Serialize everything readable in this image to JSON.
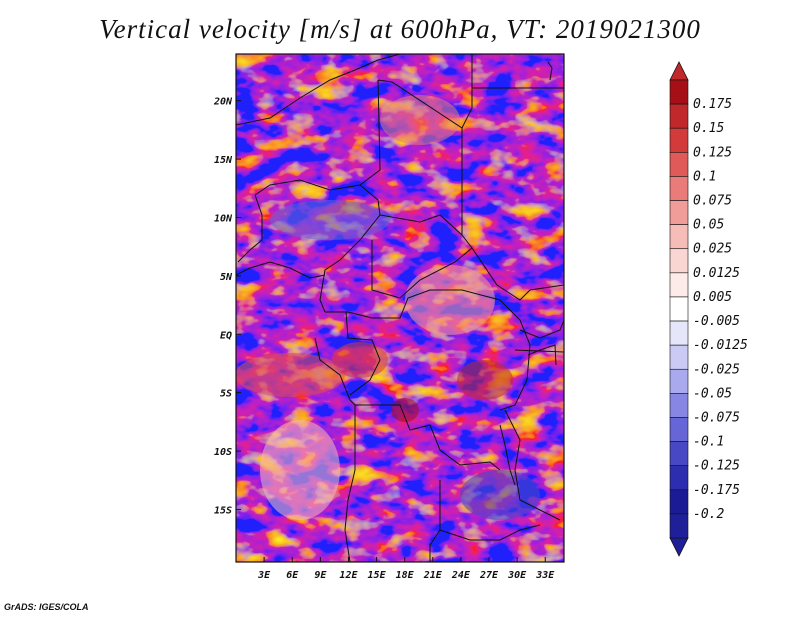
{
  "title": "Vertical velocity [m/s] at 600hPa, VT: 2019021300",
  "credit": "GrADS: IGES/COLA",
  "map": {
    "lon_range": [
      0,
      35
    ],
    "lat_range": [
      -19.5,
      24
    ],
    "lat_ticks": [
      {
        "value": 20,
        "label": "20N"
      },
      {
        "value": 15,
        "label": "15N"
      },
      {
        "value": 10,
        "label": "10N"
      },
      {
        "value": 5,
        "label": "5N"
      },
      {
        "value": 0,
        "label": "EQ"
      },
      {
        "value": -5,
        "label": "5S"
      },
      {
        "value": -10,
        "label": "10S"
      },
      {
        "value": -15,
        "label": "15S"
      }
    ],
    "lon_ticks": [
      {
        "value": 3,
        "label": "3E"
      },
      {
        "value": 6,
        "label": "6E"
      },
      {
        "value": 9,
        "label": "9E"
      },
      {
        "value": 12,
        "label": "12E"
      },
      {
        "value": 15,
        "label": "15E"
      },
      {
        "value": 18,
        "label": "18E"
      },
      {
        "value": 21,
        "label": "21E"
      },
      {
        "value": 24,
        "label": "24E"
      },
      {
        "value": 27,
        "label": "27E"
      },
      {
        "value": 30,
        "label": "30E"
      },
      {
        "value": 33,
        "label": "33E"
      }
    ]
  },
  "colorbar": {
    "levels": [
      {
        "label": "0.175",
        "color": "#a50f15"
      },
      {
        "label": "0.15",
        "color": "#c0282b"
      },
      {
        "label": "0.125",
        "color": "#d33b3b"
      },
      {
        "label": "0.1",
        "color": "#e05a5a"
      },
      {
        "label": "0.075",
        "color": "#e97b78"
      },
      {
        "label": "0.05",
        "color": "#f09c98"
      },
      {
        "label": "0.025",
        "color": "#f6bcb8"
      },
      {
        "label": "0.0125",
        "color": "#fad6d3"
      },
      {
        "label": "0.005",
        "color": "#fdebea"
      },
      {
        "label": "-0.005",
        "color": "#ffffff"
      },
      {
        "label": "-0.0125",
        "color": "#e6e6fb"
      },
      {
        "label": "-0.025",
        "color": "#cacaf5"
      },
      {
        "label": "-0.05",
        "color": "#a9a9ee"
      },
      {
        "label": "-0.075",
        "color": "#8787e3"
      },
      {
        "label": "-0.1",
        "color": "#6666d6"
      },
      {
        "label": "-0.125",
        "color": "#4848c4"
      },
      {
        "label": "-0.175",
        "color": "#2d2db0"
      },
      {
        "label": "-0.2",
        "color": "#1b1b96"
      }
    ],
    "top_color": "#c0282b",
    "bottom_color": "#1f1f99"
  }
}
